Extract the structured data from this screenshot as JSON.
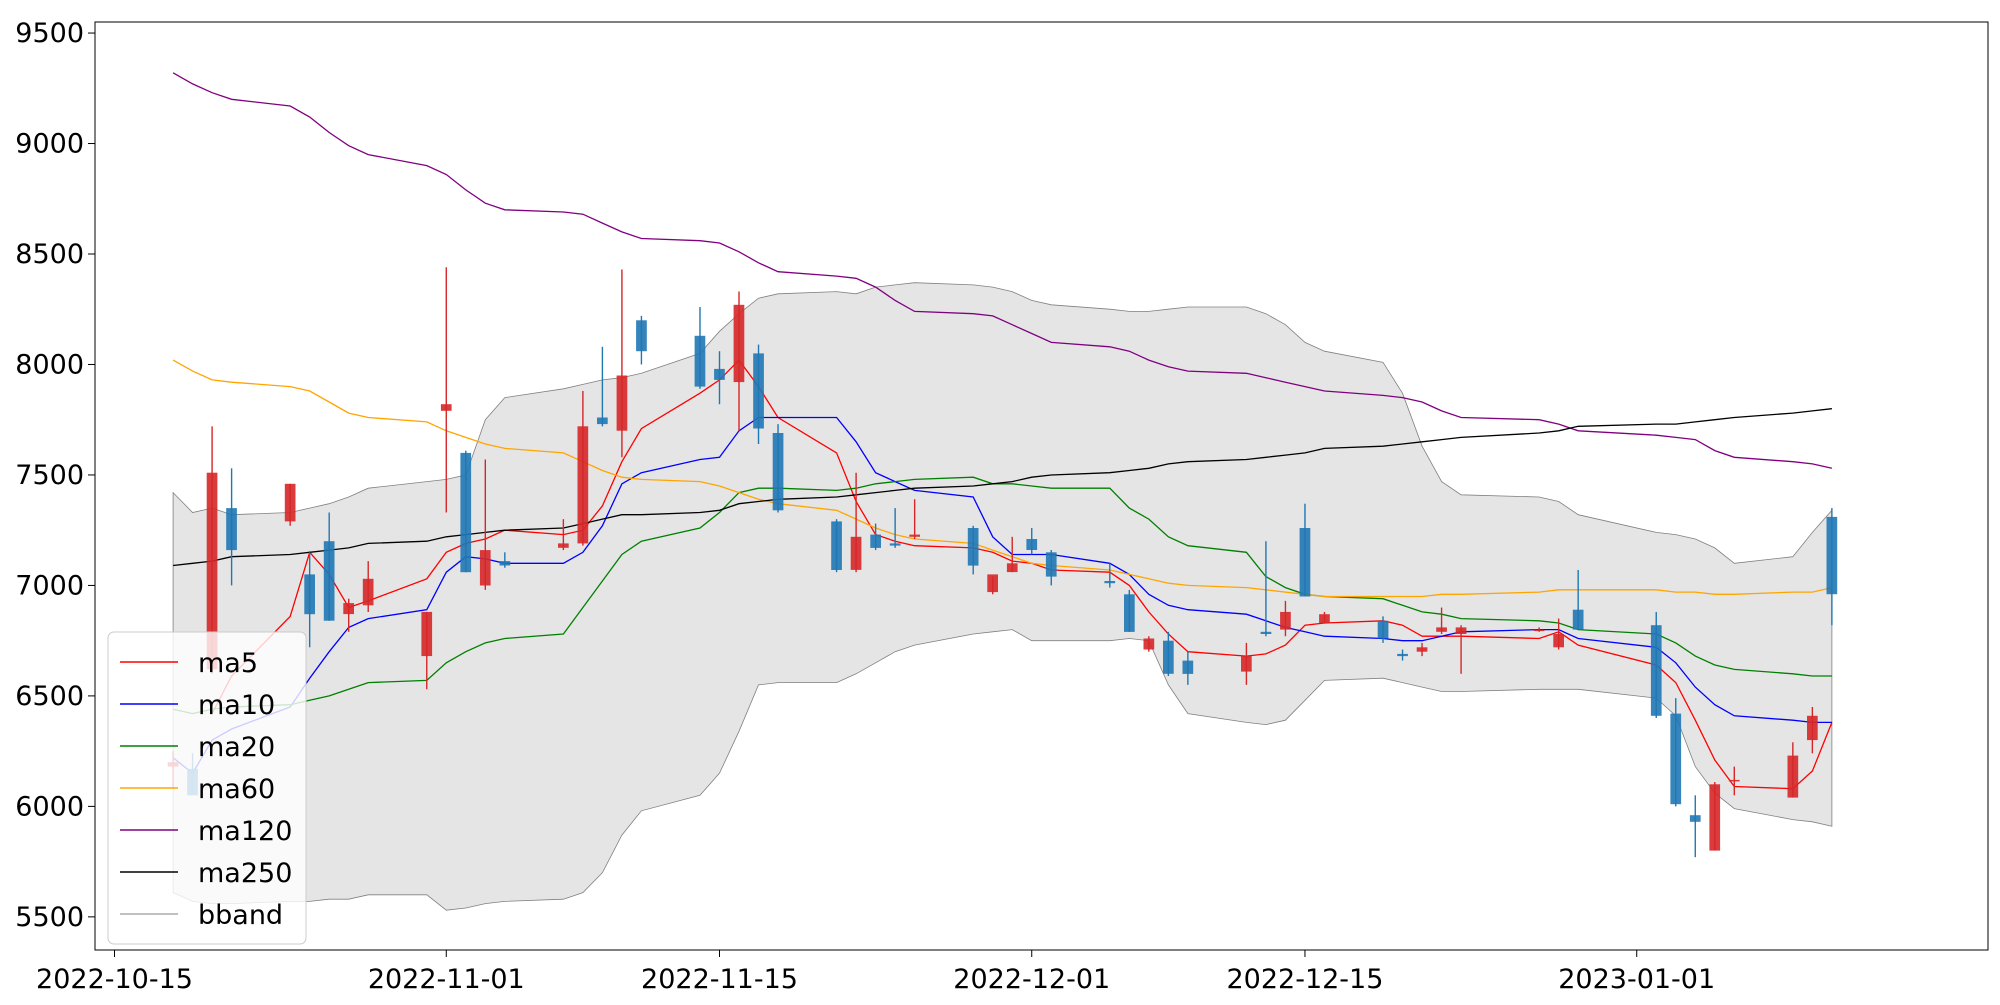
{
  "chart_data": {
    "type": "candlestick",
    "title": "",
    "xlabel": "",
    "ylabel": "",
    "xlim": [
      "2022-10-14",
      "2023-01-19"
    ],
    "ylim": [
      5350,
      9550
    ],
    "yticks": [
      5500,
      6000,
      6500,
      7000,
      7500,
      8000,
      8500,
      9000,
      9500
    ],
    "xticks": [
      "2022-10-15",
      "2022-11-01",
      "2022-11-15",
      "2022-12-01",
      "2022-12-15",
      "2023-01-01"
    ],
    "grid": false,
    "legend_position": "lower-left",
    "colors": {
      "up": "#d62728",
      "down": "#1f77b4",
      "bband_fill": "#d3d3d3",
      "bband_edge": "#808080"
    },
    "dates": [
      "2022-10-18",
      "2022-10-19",
      "2022-10-20",
      "2022-10-21",
      "2022-10-24",
      "2022-10-25",
      "2022-10-26",
      "2022-10-27",
      "2022-10-28",
      "2022-10-31",
      "2022-11-01",
      "2022-11-02",
      "2022-11-03",
      "2022-11-04",
      "2022-11-07",
      "2022-11-08",
      "2022-11-09",
      "2022-11-10",
      "2022-11-11",
      "2022-11-14",
      "2022-11-15",
      "2022-11-16",
      "2022-11-17",
      "2022-11-18",
      "2022-11-21",
      "2022-11-22",
      "2022-11-23",
      "2022-11-24",
      "2022-11-25",
      "2022-11-28",
      "2022-11-29",
      "2022-11-30",
      "2022-12-01",
      "2022-12-02",
      "2022-12-05",
      "2022-12-06",
      "2022-12-07",
      "2022-12-08",
      "2022-12-09",
      "2022-12-12",
      "2022-12-13",
      "2022-12-14",
      "2022-12-15",
      "2022-12-16",
      "2022-12-19",
      "2022-12-20",
      "2022-12-21",
      "2022-12-22",
      "2022-12-23",
      "2022-12-27",
      "2022-12-28",
      "2022-12-29",
      "2023-01-02",
      "2023-01-03",
      "2023-01-04",
      "2023-01-05",
      "2023-01-06",
      "2023-01-09",
      "2023-01-10",
      "2023-01-11"
    ],
    "ohlc": [
      [
        6180,
        6250,
        6080,
        6200
      ],
      [
        6170,
        6240,
        6060,
        6050
      ],
      [
        6620,
        7720,
        6600,
        7510
      ],
      [
        7350,
        7530,
        7000,
        7160
      ],
      [
        7290,
        7460,
        7270,
        7460
      ],
      [
        7050,
        7150,
        6720,
        6870
      ],
      [
        7200,
        7330,
        6840,
        6840
      ],
      [
        6870,
        6940,
        6790,
        6920
      ],
      [
        6910,
        7110,
        6880,
        7030
      ],
      [
        6680,
        6880,
        6530,
        6880
      ],
      [
        7790,
        8440,
        7330,
        7820
      ],
      [
        7600,
        7610,
        7060,
        7060
      ],
      [
        7000,
        7570,
        6980,
        7160
      ],
      [
        7110,
        7150,
        7080,
        7090
      ],
      [
        7170,
        7300,
        7160,
        7190
      ],
      [
        7190,
        7880,
        7180,
        7720
      ],
      [
        7760,
        8080,
        7720,
        7730
      ],
      [
        7700,
        8430,
        7580,
        7950
      ],
      [
        8200,
        8220,
        8000,
        8060
      ],
      [
        8130,
        8260,
        7890,
        7900
      ],
      [
        7980,
        8060,
        7820,
        7930
      ],
      [
        7920,
        8330,
        7700,
        8270
      ],
      [
        8050,
        8090,
        7640,
        7710
      ],
      [
        7690,
        7730,
        7330,
        7340
      ],
      [
        7290,
        7300,
        7060,
        7070
      ],
      [
        7070,
        7510,
        7060,
        7220
      ],
      [
        7230,
        7280,
        7160,
        7170
      ],
      [
        7190,
        7350,
        7170,
        7180
      ],
      [
        7220,
        7390,
        7210,
        7230
      ],
      [
        7260,
        7270,
        7050,
        7090
      ],
      [
        6970,
        7040,
        6960,
        7050
      ],
      [
        7060,
        7220,
        7060,
        7100
      ],
      [
        7210,
        7260,
        7140,
        7160
      ],
      [
        7150,
        7160,
        7000,
        7040
      ],
      [
        7020,
        7100,
        6990,
        7010
      ],
      [
        6960,
        6980,
        6790,
        6790
      ],
      [
        6710,
        6770,
        6700,
        6760
      ],
      [
        6750,
        6790,
        6590,
        6600
      ],
      [
        6660,
        6700,
        6550,
        6600
      ],
      [
        6610,
        6740,
        6550,
        6680
      ],
      [
        6790,
        7200,
        6770,
        6780
      ],
      [
        6800,
        6930,
        6770,
        6880
      ],
      [
        7260,
        7370,
        6950,
        6950
      ],
      [
        6830,
        6880,
        6830,
        6870
      ],
      [
        6840,
        6860,
        6740,
        6760
      ],
      [
        6690,
        6710,
        6660,
        6680
      ],
      [
        6700,
        6740,
        6680,
        6720
      ],
      [
        6790,
        6900,
        6780,
        6810
      ],
      [
        6780,
        6820,
        6600,
        6810
      ],
      [
        6800,
        6810,
        6790,
        6800
      ],
      [
        6720,
        6850,
        6710,
        6780
      ],
      [
        6890,
        7070,
        6800,
        6800
      ],
      [
        6820,
        6880,
        6400,
        6410
      ],
      [
        6420,
        6490,
        6000,
        6010
      ],
      [
        5960,
        6050,
        5770,
        5930
      ],
      [
        5800,
        6110,
        5800,
        6100
      ],
      [
        6120,
        6180,
        6050,
        6120
      ],
      [
        6040,
        6290,
        6040,
        6230
      ],
      [
        6300,
        6450,
        6240,
        6410
      ],
      [
        7310,
        7350,
        6820,
        6960
      ]
    ],
    "series": [
      {
        "name": "ma5",
        "color": "#ff0000",
        "values": [
          null,
          null,
          6420,
          6590,
          6860,
          7150,
          7050,
          6900,
          6930,
          7030,
          7150,
          7190,
          7210,
          7250,
          7230,
          7250,
          7360,
          7560,
          7710,
          7870,
          7930,
          8020,
          7900,
          7760,
          7600,
          7380,
          7230,
          7200,
          7180,
          7170,
          7150,
          7110,
          7100,
          7070,
          7060,
          7000,
          6880,
          6780,
          6700,
          6680,
          6690,
          6730,
          6820,
          6830,
          6840,
          6820,
          6770,
          6770,
          6770,
          6760,
          6790,
          6730,
          6640,
          6560,
          6390,
          6210,
          6090,
          6080,
          6160,
          6380
        ]
      },
      {
        "name": "ma10",
        "color": "#0000ff",
        "values": [
          6220,
          6150,
          6300,
          6350,
          6450,
          6580,
          6700,
          6810,
          6850,
          6890,
          7060,
          7130,
          7120,
          7100,
          7100,
          7150,
          7270,
          7460,
          7510,
          7570,
          7580,
          7700,
          7760,
          7760,
          7760,
          7650,
          7510,
          7470,
          7430,
          7400,
          7220,
          7140,
          7140,
          7140,
          7100,
          7050,
          6960,
          6910,
          6890,
          6870,
          6840,
          6810,
          6790,
          6770,
          6760,
          6750,
          6750,
          6770,
          6790,
          6800,
          6800,
          6760,
          6720,
          6650,
          6540,
          6460,
          6410,
          6390,
          6380,
          6380
        ]
      },
      {
        "name": "ma20",
        "color": "#008000",
        "values": [
          6440,
          6420,
          6440,
          6450,
          6460,
          6480,
          6500,
          6530,
          6560,
          6570,
          6650,
          6700,
          6740,
          6760,
          6780,
          6900,
          7020,
          7140,
          7200,
          7260,
          7330,
          7420,
          7440,
          7440,
          7430,
          7440,
          7460,
          7470,
          7480,
          7490,
          7460,
          7460,
          7450,
          7440,
          7440,
          7350,
          7300,
          7220,
          7180,
          7150,
          7040,
          6990,
          6960,
          6950,
          6940,
          6910,
          6880,
          6870,
          6850,
          6840,
          6830,
          6800,
          6780,
          6740,
          6680,
          6640,
          6620,
          6600,
          6590,
          6590
        ]
      },
      {
        "name": "ma60",
        "color": "#ffa500",
        "values": [
          8020,
          7970,
          7930,
          7920,
          7900,
          7880,
          7830,
          7780,
          7760,
          7740,
          7700,
          7670,
          7640,
          7620,
          7600,
          7560,
          7520,
          7490,
          7480,
          7470,
          7450,
          7420,
          7390,
          7370,
          7340,
          7300,
          7260,
          7230,
          7210,
          7190,
          7160,
          7130,
          7100,
          7090,
          7070,
          7050,
          7030,
          7010,
          7000,
          6990,
          6980,
          6970,
          6960,
          6950,
          6950,
          6950,
          6950,
          6960,
          6960,
          6970,
          6980,
          6980,
          6980,
          6970,
          6970,
          6960,
          6960,
          6970,
          6970,
          6990
        ]
      },
      {
        "name": "ma120",
        "color": "#800080",
        "values": [
          9320,
          9270,
          9230,
          9200,
          9170,
          9120,
          9050,
          8990,
          8950,
          8900,
          8860,
          8790,
          8730,
          8700,
          8690,
          8680,
          8640,
          8600,
          8570,
          8560,
          8550,
          8510,
          8460,
          8420,
          8400,
          8390,
          8350,
          8290,
          8240,
          8230,
          8220,
          8180,
          8140,
          8100,
          8080,
          8060,
          8020,
          7990,
          7970,
          7960,
          7940,
          7920,
          7900,
          7880,
          7860,
          7850,
          7830,
          7790,
          7760,
          7750,
          7730,
          7700,
          7680,
          7670,
          7660,
          7610,
          7580,
          7560,
          7550,
          7530
        ]
      },
      {
        "name": "ma250",
        "color": "#000000",
        "values": [
          7090,
          7100,
          7110,
          7130,
          7140,
          7150,
          7160,
          7170,
          7190,
          7200,
          7220,
          7230,
          7240,
          7250,
          7260,
          7280,
          7300,
          7320,
          7320,
          7330,
          7340,
          7370,
          7380,
          7390,
          7400,
          7410,
          7420,
          7430,
          7440,
          7450,
          7460,
          7470,
          7490,
          7500,
          7510,
          7520,
          7530,
          7550,
          7560,
          7570,
          7580,
          7590,
          7600,
          7620,
          7630,
          7640,
          7650,
          7660,
          7670,
          7690,
          7700,
          7720,
          7730,
          7730,
          7740,
          7750,
          7760,
          7780,
          7790,
          7800
        ]
      },
      {
        "name": "bband",
        "upper": [
          7420,
          7330,
          7350,
          7320,
          7330,
          7350,
          7370,
          7400,
          7440,
          7470,
          7480,
          7500,
          7750,
          7850,
          7890,
          7910,
          7930,
          7940,
          7960,
          8050,
          8150,
          8230,
          8300,
          8320,
          8330,
          8320,
          8350,
          8360,
          8370,
          8360,
          8350,
          8330,
          8290,
          8270,
          8250,
          8240,
          8240,
          8250,
          8260,
          8260,
          8230,
          8180,
          8100,
          8060,
          8010,
          7870,
          7630,
          7470,
          7410,
          7400,
          7380,
          7320,
          7240,
          7230,
          7210,
          7170,
          7100,
          7130,
          7240,
          7340
        ],
        "lower": [
          5610,
          5570,
          5560,
          5560,
          5570,
          5570,
          5580,
          5580,
          5600,
          5600,
          5530,
          5540,
          5560,
          5570,
          5580,
          5610,
          5700,
          5870,
          5980,
          6050,
          6150,
          6340,
          6550,
          6560,
          6560,
          6600,
          6650,
          6700,
          6730,
          6780,
          6790,
          6800,
          6750,
          6750,
          6750,
          6760,
          6750,
          6550,
          6420,
          6380,
          6370,
          6390,
          6480,
          6570,
          6580,
          6560,
          6540,
          6520,
          6520,
          6530,
          6530,
          6530,
          6490,
          6410,
          6180,
          6060,
          5990,
          5940,
          5930,
          5910
        ]
      }
    ],
    "legend": [
      "ma5",
      "ma10",
      "ma20",
      "ma60",
      "ma120",
      "ma250",
      "bband"
    ]
  }
}
